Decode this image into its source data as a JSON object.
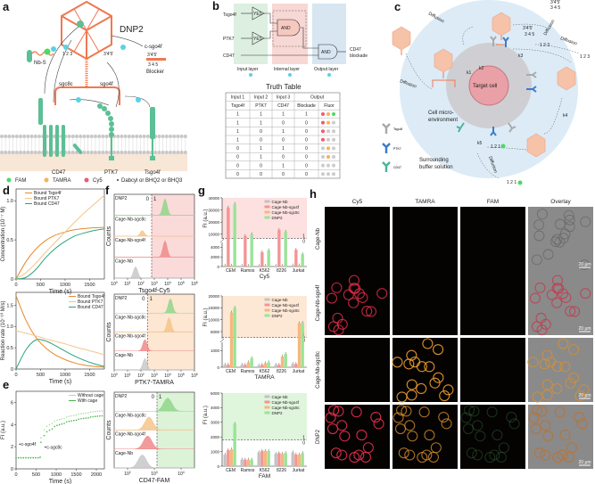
{
  "panel_labels": {
    "a": "a",
    "b": "b",
    "c": "c",
    "d": "d",
    "e": "e",
    "f": "f",
    "g": "g",
    "h": "h"
  },
  "panel_a": {
    "title": "DNP2",
    "nb": "Nb-S",
    "c_sgo4f": "c-sgo4f",
    "blocker_top": "3'4'5'",
    "blocker_bottom": "3 4 5",
    "blocker": "Blocker",
    "strand_123": "1 2 3",
    "strand_345": "3'4'5'",
    "sgc8c": "sgc8c",
    "sgo4f": "sgo4f",
    "receptors": [
      "CD47",
      "PTK7",
      "Tsgo4f"
    ],
    "legend": [
      {
        "label": "FAM",
        "color": "#4cd964"
      },
      {
        "label": "TAMRA",
        "color": "#f5b25a"
      },
      {
        "label": "Cy5",
        "color": "#ef5b6a"
      },
      {
        "label": "Dabcyl or BHQ2 or BHQ3",
        "color": "#333333"
      }
    ],
    "structure_color": "#f07850",
    "receptor_color": "#5cbf95"
  },
  "panel_b": {
    "inputs": [
      "Tsgo4f",
      "PTK7",
      "CD47"
    ],
    "gates": {
      "yes1": "YES",
      "yes2": "YES",
      "and_internal": "AND",
      "and_output": "AND"
    },
    "output": [
      "CD47",
      "blockade"
    ],
    "layers": [
      "Input layer",
      "Internal layer",
      "Output layer"
    ],
    "layer_numbers": [
      "1",
      "2",
      "3"
    ],
    "truth_table": {
      "title": "Truth Table",
      "header1": [
        "Input 1",
        "Input 2",
        "Input 3",
        "Output"
      ],
      "header2": [
        "Tsgo4f",
        "PTK7",
        "CD47",
        "Blockade",
        "Fluor"
      ],
      "rows": [
        {
          "cells": [
            "1",
            "1",
            "1",
            "1"
          ],
          "fluor": [
            "#ef5b6a",
            "#f5b25a",
            "#4cd964"
          ]
        },
        {
          "cells": [
            "1",
            "1",
            "0",
            "0"
          ],
          "fluor": [
            "#ef5b6a",
            "#f5b25a",
            "#cccccc"
          ]
        },
        {
          "cells": [
            "1",
            "0",
            "1",
            "0"
          ],
          "fluor": [
            "#ef5b6a",
            "#cccccc",
            "#cccccc"
          ]
        },
        {
          "cells": [
            "1",
            "0",
            "0",
            "0"
          ],
          "fluor": [
            "#ef5b6a",
            "#cccccc",
            "#cccccc"
          ]
        },
        {
          "cells": [
            "0",
            "1",
            "1",
            "0"
          ],
          "fluor": [
            "#cccccc",
            "#f5b25a",
            "#cccccc"
          ]
        },
        {
          "cells": [
            "0",
            "1",
            "0",
            "0"
          ],
          "fluor": [
            "#cccccc",
            "#f5b25a",
            "#cccccc"
          ]
        },
        {
          "cells": [
            "0",
            "0",
            "1",
            "0"
          ],
          "fluor": [
            "#cccccc",
            "#cccccc",
            "#cccccc"
          ]
        },
        {
          "cells": [
            "0",
            "0",
            "0",
            "0"
          ],
          "fluor": [
            "#cccccc",
            "#cccccc",
            "#cccccc"
          ]
        }
      ]
    },
    "layer_colors": [
      "#dcefe0",
      "#f8d8d4",
      "#d8e6f2"
    ]
  },
  "panel_c": {
    "target_cell": "Target cell",
    "microenvironment": [
      "Cell micro-",
      "environment"
    ],
    "buffer": [
      "Surrounding",
      "buffer solution"
    ],
    "diffusion": "Diffusion",
    "rates": [
      "k1",
      "k2",
      "k3",
      "k4",
      "k5"
    ],
    "strands": {
      "s345_top": "3'4'5'",
      "s345": "3 4 5",
      "s123": "1 2 3",
      "s121": "1 2 1"
    },
    "legend": [
      {
        "label": "Tsgo4f",
        "color": "#a9a9a9"
      },
      {
        "label": "PTK7",
        "color": "#3d7cc9"
      },
      {
        "label": "CD47",
        "color": "#4fb39a"
      }
    ]
  },
  "chart_data": [
    {
      "panel": "d-top",
      "type": "line",
      "xlabel": "Time (s)",
      "ylabel": "Concentration (10⁻⁷ M)",
      "xlim": [
        0,
        1800
      ],
      "ylim": [
        0,
        1.15
      ],
      "xticks": [
        0,
        500,
        1000,
        1500
      ],
      "yticks": [
        0,
        0.5,
        1.0
      ],
      "ytick_labels": [
        "0",
        "0.5",
        "1.0"
      ],
      "legend_position": "top-left",
      "x": [
        0,
        200,
        400,
        600,
        800,
        1000,
        1200,
        1400,
        1600,
        1800
      ],
      "series": [
        {
          "name": "Bound Tsgo4f",
          "color": "#e8882a",
          "values": [
            0,
            0.22,
            0.38,
            0.49,
            0.56,
            0.6,
            0.63,
            0.645,
            0.655,
            0.66
          ]
        },
        {
          "name": "Bound PTK7",
          "color": "#f5c48a",
          "values": [
            0,
            0.08,
            0.2,
            0.34,
            0.47,
            0.6,
            0.73,
            0.85,
            0.96,
            1.07
          ]
        },
        {
          "name": "Bound CD47",
          "color": "#2aa37a",
          "values": [
            0,
            0.02,
            0.12,
            0.27,
            0.39,
            0.48,
            0.55,
            0.59,
            0.62,
            0.64
          ]
        }
      ]
    },
    {
      "panel": "d-bottom",
      "type": "line",
      "xlabel": "Time (s)",
      "ylabel": "Reaction rate (10⁻¹⁰ M/s)",
      "xlim": [
        0,
        1800
      ],
      "ylim": [
        0,
        1.8
      ],
      "xticks": [
        0,
        500,
        1000,
        1500
      ],
      "yticks": [
        0,
        0.5,
        1.0,
        1.5
      ],
      "ytick_labels": [
        "0",
        "0.5",
        "1.0",
        "1.5"
      ],
      "legend_position": "top-right",
      "x": [
        0,
        200,
        400,
        600,
        800,
        1000,
        1200,
        1400,
        1600,
        1800
      ],
      "series": [
        {
          "name": "Bound Tsgo4f",
          "color": "#e8882a",
          "values": [
            1.72,
            1.15,
            0.75,
            0.5,
            0.33,
            0.22,
            0.14,
            0.09,
            0.06,
            0.04
          ]
        },
        {
          "name": "Bound PTK7",
          "color": "#f5c48a",
          "values": [
            0.9,
            0.84,
            0.78,
            0.71,
            0.65,
            0.59,
            0.52,
            0.46,
            0.4,
            0.33
          ]
        },
        {
          "name": "Bound CD47",
          "color": "#2aa37a",
          "values": [
            0,
            0.45,
            0.68,
            0.66,
            0.55,
            0.42,
            0.3,
            0.2,
            0.12,
            0.06
          ]
        }
      ]
    },
    {
      "panel": "e",
      "type": "scatter",
      "xlabel": "Time (s)",
      "ylabel": "FI (a.u.)",
      "xlim": [
        0,
        2200
      ],
      "ylim": [
        0,
        7
      ],
      "xticks": [
        0,
        500,
        1000,
        1500,
        2000
      ],
      "yticks": [
        0,
        2,
        4,
        6
      ],
      "ytick_labels": [
        "0",
        "2",
        "4",
        "6"
      ],
      "legend_position": "top-right",
      "annotations": [
        "+c-sgo4f",
        "+c-sgc8c"
      ],
      "series": [
        {
          "name": "Without cage",
          "color": "#a8e0a0",
          "points": [
            [
              0,
              1
            ],
            [
              550,
              1
            ],
            [
              600,
              1.05
            ],
            [
              620,
              2.8
            ],
            [
              700,
              3.5
            ],
            [
              900,
              4.1
            ],
            [
              1200,
              4.55
            ],
            [
              1500,
              4.85
            ],
            [
              1800,
              5.05
            ],
            [
              2200,
              5.25
            ]
          ]
        },
        {
          "name": "With cage",
          "color": "#3fb548",
          "points": [
            [
              0,
              1
            ],
            [
              550,
              1
            ],
            [
              600,
              1.05
            ],
            [
              620,
              2.4
            ],
            [
              700,
              3.0
            ],
            [
              900,
              3.6
            ],
            [
              1200,
              4.1
            ],
            [
              1500,
              4.4
            ],
            [
              1800,
              4.6
            ],
            [
              2200,
              4.8
            ]
          ]
        }
      ]
    },
    {
      "panel": "f-cy5",
      "type": "histogram",
      "xlabel": "Tsgo4f-Cy5",
      "ylabel": "Counts",
      "xscale": "log",
      "xlim_log10": [
        0,
        6
      ],
      "xtick_exponents": [
        "0",
        "1",
        "2",
        "3",
        "4",
        "5",
        "6"
      ],
      "threshold_log10": 2.8,
      "threshold_labels": [
        "0",
        "1"
      ],
      "shade_color": "#fbdada",
      "samples": [
        {
          "name": "DNP2",
          "peak_log10": 3.8,
          "height": 1.0,
          "color": "#8fd68a"
        },
        {
          "name": "Cage-Nb-sgc8c",
          "peak_log10": 2.1,
          "height": 0.35,
          "color": "#f5c48a"
        },
        {
          "name": "Cage-Nb-sgo4f",
          "peak_log10": 3.8,
          "height": 1.0,
          "color": "#f08a8a"
        },
        {
          "name": "Cage-Nb",
          "peak_log10": 1.6,
          "height": 0.7,
          "color": "#c8c8c8"
        }
      ]
    },
    {
      "panel": "f-tamra",
      "type": "histogram",
      "xlabel": "PTK7-TAMRA",
      "ylabel": "Counts",
      "xscale": "log",
      "xlim_log10": [
        0,
        6
      ],
      "xtick_exponents": [
        "0",
        "1",
        "2",
        "3",
        "4",
        "5",
        "6"
      ],
      "threshold_log10": 2.5,
      "threshold_labels": [
        "0",
        "1"
      ],
      "shade_color": "#fde6d2",
      "samples": [
        {
          "name": "DNP2",
          "peak_log10": 4.2,
          "height": 1.0,
          "color": "#8fd68a"
        },
        {
          "name": "Cage-Nb-sgc8c",
          "peak_log10": 4.1,
          "height": 1.0,
          "color": "#f5c48a"
        },
        {
          "name": "Cage-Nb-sgo4f",
          "peak_log10": 2.3,
          "height": 0.8,
          "color": "#f08a8a"
        },
        {
          "name": "Cage-Nb",
          "peak_log10": 2.3,
          "height": 0.8,
          "color": "#c8c8c8"
        }
      ]
    },
    {
      "panel": "f-fam",
      "type": "histogram",
      "xlabel": "CD47-FAM",
      "ylabel": "Counts",
      "xscale": "log",
      "xlim_log10": [
        1.5,
        4.5
      ],
      "xtick_exponents": [
        "2",
        "3",
        "4"
      ],
      "threshold_log10": 3.1,
      "threshold_labels": [
        "0",
        "1"
      ],
      "shade_color": "#dcf3d8",
      "samples": [
        {
          "name": "DNP2",
          "peak_log10": 3.5,
          "height": 0.9,
          "color": "#8fd68a"
        },
        {
          "name": "Cage-Nb-sgc8c",
          "peak_log10": 2.8,
          "height": 0.9,
          "color": "#f5c48a"
        },
        {
          "name": "Cage-Nb-sgo4f",
          "peak_log10": 2.75,
          "height": 0.9,
          "color": "#f08a8a"
        },
        {
          "name": "Cage-Nb",
          "peak_log10": 2.55,
          "height": 0.9,
          "color": "#c8c8c8"
        }
      ]
    },
    {
      "panel": "g-cy5",
      "type": "bar",
      "xlabel": "Cy5",
      "ylabel": "FI (a.u.)",
      "categories": [
        "CEM",
        "Ramos",
        "K562",
        "8226",
        "Jurkat"
      ],
      "axis_break": [
        5000,
        6000
      ],
      "ylim": [
        0,
        40000
      ],
      "yticks": [
        0,
        2000,
        4000,
        10000,
        20000,
        30000,
        40000
      ],
      "threshold": 6500,
      "threshold_labels": [
        "1",
        "0"
      ],
      "shade_color": "#fde0e0",
      "legend_position": "top-right",
      "series": [
        {
          "name": "Cage-Nb",
          "color": "#c2c2c2",
          "values": [
            200,
            150,
            150,
            150,
            250
          ]
        },
        {
          "name": "Cage-Nb-sgo4f",
          "color": "#f49494",
          "values": [
            32000,
            8500,
            3000,
            13500,
            3500
          ]
        },
        {
          "name": "Cage-Nb-sgc8c",
          "color": "#f7b77c",
          "values": [
            200,
            150,
            150,
            150,
            250
          ]
        },
        {
          "name": "DNP2",
          "color": "#98e498",
          "values": [
            35000,
            10000,
            3400,
            12000,
            2600
          ]
        }
      ]
    },
    {
      "panel": "g-tamra",
      "type": "bar",
      "xlabel": "TAMRA",
      "ylabel": "FI (a.u.)",
      "categories": [
        "CEM",
        "Ramos",
        "K562",
        "8226",
        "Jurkat"
      ],
      "axis_break": [
        1500,
        2000
      ],
      "ylim": [
        0,
        20000
      ],
      "yticks": [
        0,
        1000,
        5000,
        10000,
        15000,
        20000
      ],
      "threshold": 2500,
      "threshold_labels": [
        "1",
        "0"
      ],
      "shade_color": "#fde8d6",
      "legend_position": "top-right",
      "series": [
        {
          "name": "Cage-Nb",
          "color": "#c2c2c2",
          "values": [
            150,
            150,
            100,
            150,
            200
          ]
        },
        {
          "name": "Cage-Nb-sgo4f",
          "color": "#f49494",
          "values": [
            150,
            150,
            150,
            150,
            200
          ]
        },
        {
          "name": "Cage-Nb-sgc8c",
          "color": "#f7b77c",
          "values": [
            13000,
            300,
            250,
            650,
            8500
          ]
        },
        {
          "name": "DNP2",
          "color": "#98e498",
          "values": [
            15000,
            550,
            300,
            800,
            8700
          ]
        }
      ]
    },
    {
      "panel": "g-fam",
      "type": "bar",
      "xlabel": "FAM",
      "ylabel": "FI (a.u.)",
      "categories": [
        "CEM",
        "Ramos",
        "K562",
        "8226",
        "Jurkat"
      ],
      "ylim": [
        0,
        5000
      ],
      "yticks": [
        0,
        1000,
        2000,
        3000,
        4000,
        5000
      ],
      "threshold": 1800,
      "threshold_labels": [
        "1",
        "0"
      ],
      "shade_color": "#dff5dc",
      "legend_position": "top-right",
      "series": [
        {
          "name": "Cage-Nb",
          "color": "#c2c2c2",
          "values": [
            800,
            450,
            950,
            850,
            950
          ]
        },
        {
          "name": "Cage-Nb-sgo4f",
          "color": "#f49494",
          "values": [
            1100,
            450,
            1050,
            900,
            800
          ]
        },
        {
          "name": "Cage-Nb-sgc8c",
          "color": "#f7b77c",
          "values": [
            1150,
            450,
            1050,
            850,
            800
          ]
        },
        {
          "name": "DNP2",
          "color": "#98e498",
          "values": [
            2900,
            450,
            1050,
            900,
            900
          ]
        }
      ]
    }
  ],
  "panel_h": {
    "columns": [
      "Cy5",
      "TAMRA",
      "FAM",
      "Overlay"
    ],
    "rows": [
      "Cage-Nb",
      "Cage-Nb-sgo4f",
      "Cage-Nb-sgc8c",
      "DNP2"
    ],
    "scale_bar": "20 μm",
    "channel_colors": {
      "Cy5": "#e8304a",
      "TAMRA": "#f0a030",
      "FAM": "#3c8a48"
    },
    "signal": [
      [
        0,
        0,
        0
      ],
      [
        0.8,
        0,
        0
      ],
      [
        0,
        0.9,
        0
      ],
      [
        0.9,
        0.7,
        0.35
      ]
    ]
  }
}
